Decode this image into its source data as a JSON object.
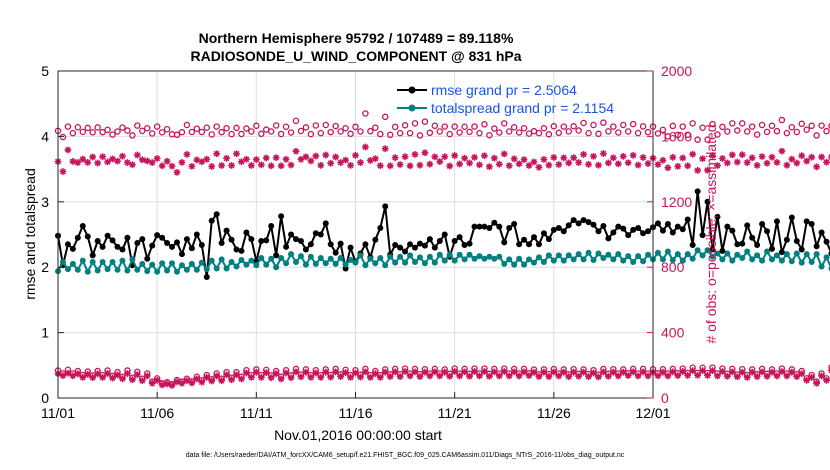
{
  "chart_data": {
    "type": "line",
    "title": "Northern Hemisphere 95792 / 107489 = 89.118%",
    "subtitle": "RADIOSONDE_U_WIND_COMPONENT @ 831 hPa",
    "xlabel": "Nov.01,2016 00:00:00 start",
    "ylabel": "rmse and totalspread",
    "ylabel_right": "# of obs: o=possible; ×=assimilated",
    "ylim": [
      0,
      5
    ],
    "ylim_right": [
      0,
      2000
    ],
    "xlim": [
      0,
      30
    ],
    "yticks": [
      "0",
      "1",
      "2",
      "3",
      "4",
      "5"
    ],
    "yticks_right": [
      "0",
      "400",
      "800",
      "1200",
      "1600",
      "2000"
    ],
    "x_tick_labels": [
      "11/01",
      "11/06",
      "11/11",
      "11/16",
      "11/21",
      "11/26",
      "12/01"
    ],
    "x_tick_values": [
      0,
      5,
      10,
      15,
      20,
      25,
      30
    ],
    "step": 0.25,
    "legend": {
      "position": "top-right",
      "entries": [
        "rmse grand pr = 2.5064",
        "totalspread grand pr = 2.1154"
      ]
    },
    "series": [
      {
        "name": "rmse",
        "color": "#000000",
        "marker": "filled-circle",
        "values": [
          2.48,
          2.03,
          2.35,
          2.28,
          2.45,
          2.63,
          2.47,
          2.18,
          2.4,
          2.31,
          2.48,
          2.41,
          2.31,
          2.27,
          2.45,
          2.03,
          2.37,
          2.43,
          2.13,
          2.33,
          2.49,
          2.45,
          2.37,
          2.31,
          2.38,
          2.2,
          2.43,
          2.29,
          2.5,
          2.34,
          1.85,
          2.71,
          2.81,
          2.37,
          2.56,
          2.42,
          2.27,
          2.25,
          2.53,
          2.43,
          2.09,
          2.4,
          2.41,
          2.63,
          2.18,
          2.78,
          2.31,
          2.5,
          2.43,
          2.4,
          2.27,
          2.35,
          2.52,
          2.5,
          2.67,
          2.35,
          2.22,
          2.36,
          1.98,
          2.3,
          2.08,
          2.21,
          2.35,
          2.15,
          2.42,
          2.6,
          2.93,
          2.19,
          2.34,
          2.3,
          2.24,
          2.35,
          2.3,
          2.36,
          2.33,
          2.43,
          2.3,
          2.4,
          2.5,
          2.16,
          2.4,
          2.46,
          2.34,
          2.36,
          2.62,
          2.62,
          2.62,
          2.6,
          2.68,
          2.62,
          2.38,
          2.6,
          2.66,
          2.35,
          2.42,
          2.35,
          2.46,
          2.35,
          2.52,
          2.43,
          2.57,
          2.6,
          2.55,
          2.64,
          2.72,
          2.67,
          2.72,
          2.69,
          2.65,
          2.55,
          2.63,
          2.44,
          2.53,
          2.62,
          2.59,
          2.49,
          2.57,
          2.6,
          2.52,
          2.55,
          2.61,
          2.67,
          2.56,
          2.66,
          2.53,
          2.62,
          2.58,
          2.73,
          2.34,
          3.16,
          2.49,
          3.0,
          2.27,
          2.77,
          2.25,
          2.62,
          2.56,
          2.35,
          2.36,
          2.64,
          2.45,
          2.34,
          2.66,
          2.55,
          2.28,
          2.7,
          2.23,
          2.42,
          2.76,
          2.4,
          2.27,
          2.7,
          2.66,
          2.32,
          2.53,
          2.39,
          2.21,
          2.67,
          2.68,
          2.61,
          1.94
        ]
      },
      {
        "name": "totalspread",
        "color": "#008080",
        "marker": "filled-circle",
        "values": [
          1.94,
          2.08,
          1.97,
          2.05,
          1.96,
          2.1,
          1.93,
          2.08,
          1.95,
          2.08,
          1.97,
          2.08,
          1.96,
          2.1,
          1.95,
          2.12,
          1.96,
          2.05,
          1.94,
          2.04,
          1.93,
          2.06,
          1.95,
          2.06,
          1.93,
          2.03,
          1.96,
          2.05,
          1.96,
          2.07,
          1.97,
          2.1,
          1.98,
          2.12,
          1.98,
          2.08,
          2.01,
          2.11,
          2.04,
          2.1,
          2.03,
          2.14,
          2.04,
          2.13,
          2.0,
          2.14,
          2.06,
          2.2,
          2.08,
          2.17,
          2.04,
          2.16,
          2.05,
          2.14,
          2.06,
          2.13,
          2.05,
          2.14,
          2.04,
          2.11,
          2.07,
          2.18,
          2.03,
          2.13,
          2.06,
          2.14,
          2.03,
          2.16,
          2.07,
          2.16,
          2.07,
          2.18,
          2.08,
          2.15,
          2.06,
          2.16,
          2.07,
          2.19,
          2.1,
          2.19,
          2.1,
          2.19,
          2.12,
          2.19,
          2.13,
          2.17,
          2.13,
          2.16,
          2.13,
          2.16,
          2.05,
          2.12,
          2.04,
          2.13,
          2.04,
          2.12,
          2.07,
          2.15,
          2.08,
          2.18,
          2.1,
          2.18,
          2.1,
          2.18,
          2.12,
          2.2,
          2.12,
          2.22,
          2.11,
          2.21,
          2.14,
          2.19,
          2.12,
          2.2,
          2.1,
          2.17,
          2.08,
          2.17,
          2.09,
          2.19,
          2.12,
          2.22,
          2.12,
          2.24,
          2.11,
          2.2,
          2.1,
          2.2,
          2.13,
          2.26,
          2.18,
          2.26,
          2.16,
          2.21,
          2.12,
          2.21,
          2.1,
          2.19,
          2.14,
          2.24,
          2.12,
          2.18,
          2.1,
          2.24,
          2.12,
          2.18,
          2.1,
          2.2,
          2.09,
          2.21,
          2.07,
          2.2,
          2.08,
          2.2,
          2.01,
          2.15,
          1.98,
          2.12,
          2.0,
          2.3,
          2.08,
          2.09
        ]
      },
      {
        "name": "obs possible",
        "axis": "right",
        "color": "#c8145a",
        "marker": "open-circle",
        "values": [
          1634,
          1596,
          1660,
          1620,
          1656,
          1628,
          1652,
          1625,
          1655,
          1626,
          1640,
          1611,
          1630,
          1654,
          1636,
          1606,
          1666,
          1634,
          1650,
          1618,
          1660,
          1625,
          1644,
          1613,
          1610,
          1626,
          1670,
          1627,
          1647,
          1627,
          1653,
          1612,
          1660,
          1626,
          1650,
          1614,
          1652,
          1615,
          1648,
          1630,
          1665,
          1616,
          1642,
          1630,
          1667,
          1615,
          1659,
          1624,
          1695,
          1633,
          1655,
          1614,
          1667,
          1620,
          1670,
          1626,
          1663,
          1630,
          1650,
          1616,
          1658,
          1630,
          1740,
          1632,
          1653,
          1614,
          1720,
          1610,
          1658,
          1620,
          1668,
          1620,
          1680,
          1606,
          1690,
          1622,
          1665,
          1630,
          1660,
          1614,
          1660,
          1624,
          1659,
          1628,
          1660,
          1620,
          1674,
          1607,
          1648,
          1624,
          1680,
          1630,
          1656,
          1624,
          1650,
          1617,
          1632,
          1620,
          1650,
          1613,
          1662,
          1622,
          1660,
          1631,
          1662,
          1636,
          1682,
          1620,
          1670,
          1616,
          1684,
          1631,
          1660,
          1624,
          1670,
          1630,
          1675,
          1620,
          1661,
          1626,
          1660,
          1618,
          1640,
          1600,
          1664,
          1609,
          1660,
          1610,
          1680,
          1580,
          1653,
          1580,
          1675,
          1612,
          1658,
          1630,
          1680,
          1636,
          1680,
          1630,
          1660,
          1611,
          1670,
          1628,
          1665,
          1632,
          1700,
          1620,
          1656,
          1627,
          1677,
          1641,
          1665,
          1606,
          1666,
          1632,
          1664,
          1633,
          1650,
          1660,
          1612
        ]
      },
      {
        "name": "obs assimilated",
        "axis": "right",
        "color": "#c8145a",
        "marker": "asterisk",
        "values": [
          1446,
          1385,
          1517,
          1447,
          1440,
          1461,
          1441,
          1474,
          1437,
          1476,
          1444,
          1462,
          1449,
          1479,
          1440,
          1427,
          1486,
          1457,
          1450,
          1440,
          1465,
          1420,
          1448,
          1418,
          1380,
          1441,
          1490,
          1417,
          1456,
          1445,
          1460,
          1416,
          1494,
          1422,
          1466,
          1422,
          1494,
          1445,
          1460,
          1422,
          1458,
          1426,
          1468,
          1420,
          1470,
          1420,
          1460,
          1425,
          1509,
          1460,
          1475,
          1450,
          1480,
          1423,
          1486,
          1436,
          1474,
          1440,
          1455,
          1423,
          1484,
          1440,
          1535,
          1453,
          1464,
          1421,
          1525,
          1420,
          1470,
          1428,
          1476,
          1420,
          1490,
          1424,
          1500,
          1430,
          1475,
          1446,
          1476,
          1419,
          1483,
          1431,
          1467,
          1437,
          1472,
          1426,
          1482,
          1415,
          1467,
          1430,
          1493,
          1421,
          1463,
          1432,
          1458,
          1422,
          1444,
          1411,
          1459,
          1424,
          1471,
          1428,
          1469,
          1438,
          1470,
          1440,
          1490,
          1429,
          1478,
          1424,
          1495,
          1438,
          1469,
          1432,
          1478,
          1439,
          1484,
          1425,
          1471,
          1434,
          1467,
          1428,
          1454,
          1408,
          1472,
          1417,
          1468,
          1420,
          1491,
          1392,
          1464,
          1393,
          1483,
          1422,
          1465,
          1438,
          1487,
          1443,
          1488,
          1440,
          1469,
          1423,
          1477,
          1436,
          1473,
          1441,
          1510,
          1424,
          1461,
          1437,
          1482,
          1449,
          1473,
          1414,
          1474,
          1442,
          1474,
          1441,
          1460,
          1470,
          1420
        ]
      },
      {
        "name": "obs possible (lower)",
        "axis": "right",
        "color": "#c8145a",
        "marker": "open-circle",
        "values": [
          168,
          150,
          172,
          150,
          165,
          140,
          162,
          138,
          165,
          140,
          168,
          135,
          158,
          130,
          168,
          124,
          160,
          118,
          150,
          100,
          120,
          90,
          96,
          85,
          110,
          100,
          118,
          102,
          130,
          108,
          140,
          115,
          150,
          118,
          158,
          124,
          158,
          130,
          170,
          140,
          175,
          140,
          172,
          138,
          165,
          130,
          170,
          138,
          178,
          143,
          175,
          140,
          170,
          140,
          175,
          141,
          178,
          145,
          172,
          140,
          170,
          142,
          178,
          140,
          165,
          140,
          175,
          145,
          178,
          146,
          180,
          150,
          178,
          146,
          176,
          150,
          178,
          150,
          175,
          148,
          180,
          150,
          178,
          148,
          180,
          150,
          180,
          148,
          178,
          150,
          180,
          150,
          178,
          150,
          178,
          152,
          174,
          145,
          175,
          146,
          177,
          150,
          175,
          145,
          176,
          148,
          175,
          146,
          170,
          143,
          177,
          148,
          176,
          150,
          175,
          152,
          178,
          150,
          178,
          150,
          176,
          151,
          176,
          150,
          178,
          152,
          180,
          153,
          185,
          154,
          185,
          153,
          186,
          150,
          180,
          148,
          178,
          144,
          176,
          140,
          175,
          145,
          178,
          148,
          175,
          150,
          180,
          150,
          175,
          145,
          165,
          120,
          140,
          100,
          150,
          120,
          188,
          162,
          173,
          150,
          162
        ]
      },
      {
        "name": "obs assimilated (lower)",
        "axis": "right",
        "color": "#c8145a",
        "marker": "asterisk",
        "values": [
          148,
          137,
          152,
          136,
          148,
          126,
          145,
          125,
          148,
          126,
          150,
          122,
          141,
          118,
          150,
          112,
          143,
          106,
          135,
          90,
          108,
          80,
          86,
          77,
          99,
          90,
          106,
          92,
          117,
          97,
          126,
          104,
          135,
          106,
          142,
          112,
          142,
          117,
          153,
          126,
          158,
          126,
          155,
          124,
          149,
          117,
          153,
          124,
          160,
          129,
          158,
          126,
          153,
          126,
          158,
          127,
          160,
          131,
          155,
          126,
          153,
          128,
          160,
          126,
          149,
          126,
          158,
          131,
          160,
          131,
          162,
          135,
          160,
          131,
          158,
          135,
          160,
          135,
          158,
          133,
          162,
          135,
          160,
          133,
          162,
          135,
          162,
          133,
          160,
          135,
          162,
          135,
          160,
          135,
          160,
          137,
          157,
          131,
          158,
          131,
          159,
          135,
          158,
          131,
          158,
          133,
          158,
          131,
          153,
          129,
          159,
          133,
          158,
          135,
          158,
          137,
          160,
          135,
          160,
          135,
          158,
          136,
          158,
          135,
          160,
          137,
          162,
          138,
          167,
          139,
          167,
          138,
          167,
          135,
          162,
          133,
          160,
          130,
          158,
          126,
          158,
          131,
          160,
          133,
          158,
          135,
          162,
          135,
          158,
          131,
          149,
          108,
          126,
          90,
          135,
          108,
          169,
          146,
          156,
          135,
          146
        ]
      }
    ]
  },
  "footer": "data file: /Users/raeder/DAI/ATM_forcXX/CAM6_setup/f.e21.FHIST_BGC.f09_025.CAM6assim.011/Diags_NTrS_2016-11/obs_diag_output.nc"
}
